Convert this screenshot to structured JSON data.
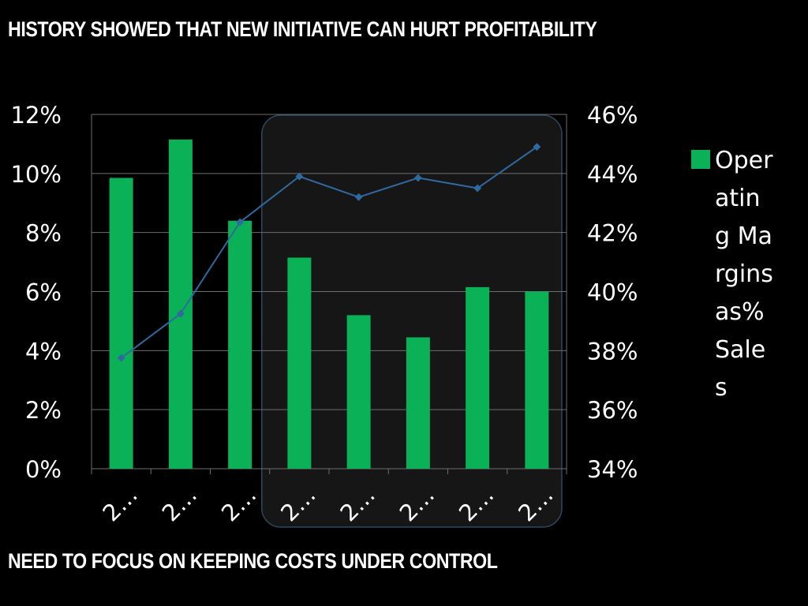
{
  "slide": {
    "title": "HISTORY SHOWED THAT NEW INITIATIVE CAN HURT PROFITABILITY",
    "footer": "NEED TO FOCUS ON KEEPING COSTS UNDER CONTROL"
  },
  "colors": {
    "background": "#000000",
    "bar": "#0bb156",
    "line": "#2e6aa1",
    "highlight_fill": "#161616",
    "highlight_stroke": "#2a4960",
    "grid": "#6e6e6e",
    "text": "#ffffff"
  },
  "chart_data": {
    "type": "bar",
    "categories": [
      "2…",
      "2…",
      "2…",
      "2…",
      "2…",
      "2…",
      "2…",
      "2…"
    ],
    "series": [
      {
        "name": "Operating Margins as% Sales",
        "type": "bar",
        "axis": "left",
        "values": [
          9.85,
          11.15,
          8.4,
          7.15,
          5.2,
          4.45,
          6.15,
          6.0
        ]
      },
      {
        "type": "line",
        "axis": "right",
        "values": [
          37.75,
          39.25,
          42.35,
          43.9,
          43.2,
          43.85,
          43.5,
          44.9
        ]
      }
    ],
    "y_left": {
      "min": 0,
      "max": 12,
      "ticks": [
        0,
        2,
        4,
        6,
        8,
        10,
        12
      ],
      "tick_labels": [
        "0%",
        "2%",
        "4%",
        "6%",
        "8%",
        "10%",
        "12%"
      ]
    },
    "y_right": {
      "min": 34,
      "max": 46,
      "ticks": [
        34,
        36,
        38,
        40,
        42,
        44,
        46
      ],
      "tick_labels": [
        "34%",
        "36%",
        "38%",
        "40%",
        "42%",
        "44%",
        "46%"
      ]
    },
    "grid": true,
    "legend": "right",
    "highlight_range": [
      3,
      7
    ],
    "title": "",
    "xlabel": "",
    "ylabel": ""
  }
}
